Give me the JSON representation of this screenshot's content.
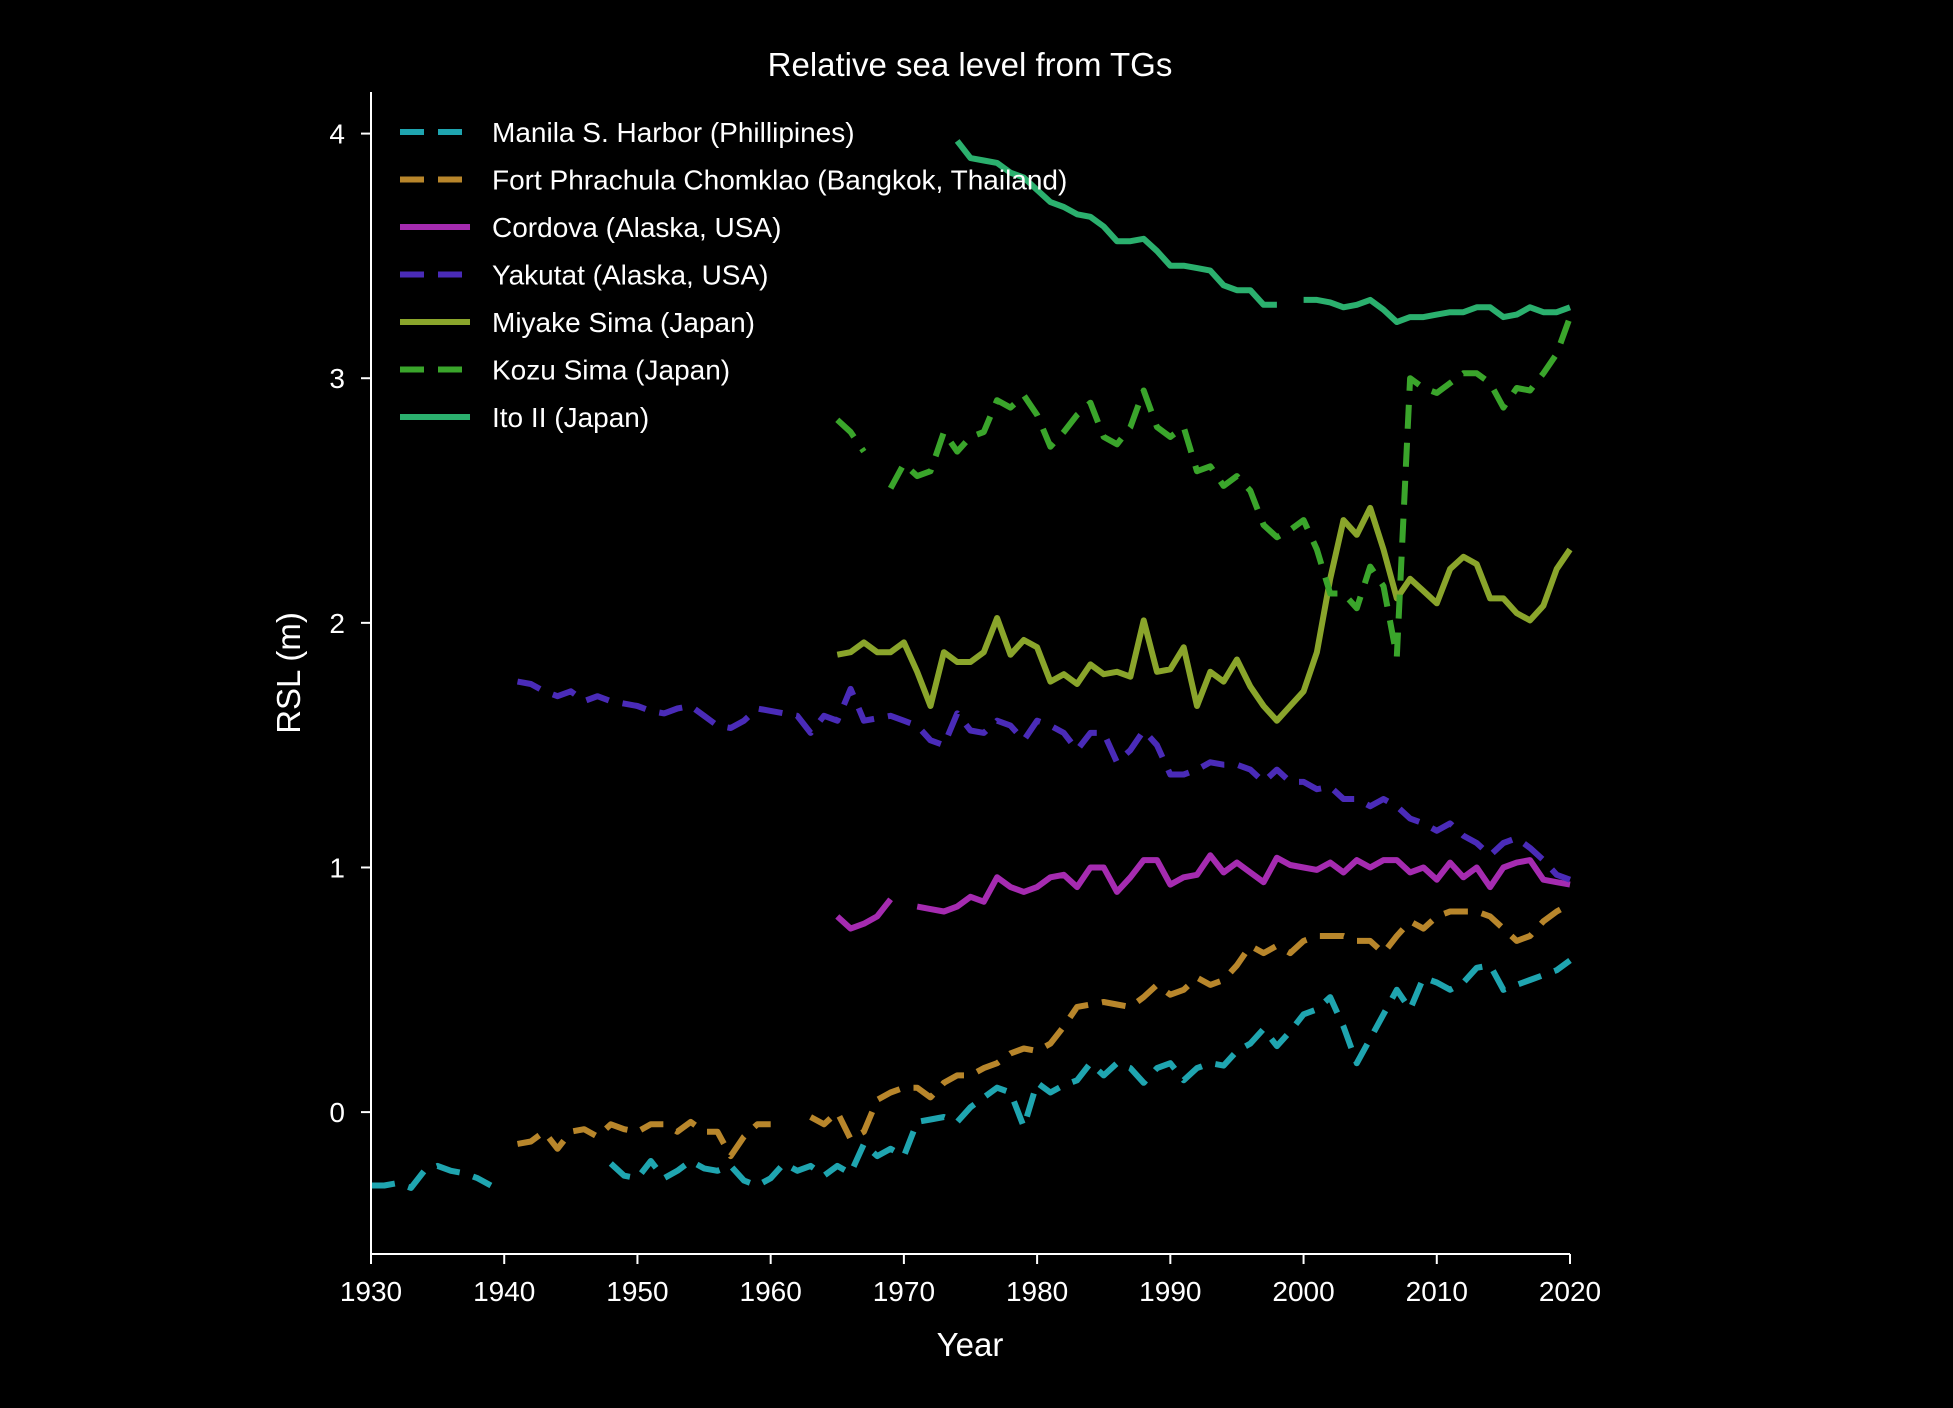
{
  "chart_data": {
    "type": "line",
    "title": "Relative sea level from TGs",
    "xlabel": "Year",
    "ylabel": "RSL (m)",
    "xlim": [
      1930,
      2020
    ],
    "ylim": [
      -0.58,
      4.17
    ],
    "xticks": [
      1930,
      1940,
      1950,
      1960,
      1970,
      1980,
      1990,
      2000,
      2010,
      2020
    ],
    "yticks": [
      0,
      1,
      2,
      3,
      4
    ],
    "grid": false,
    "legend_position": "top-left",
    "series": [
      {
        "name": "Manila S. Harbor (Phillipines)",
        "color": "#1fa5b0",
        "dash": "dashed",
        "x": [
          1930,
          1931,
          1932,
          1933,
          1934,
          1935,
          1936,
          1937,
          1938,
          1939,
          null,
          1948,
          1949,
          1950,
          1951,
          1952,
          1953,
          1954,
          1955,
          1956,
          1957,
          1958,
          1959,
          1960,
          1961,
          1962,
          1963,
          1964,
          1965,
          1966,
          1967,
          1968,
          1969,
          1970,
          1971,
          1972,
          1973,
          1974,
          1975,
          1976,
          1977,
          1978,
          1979,
          1980,
          1981,
          1982,
          1983,
          1984,
          1985,
          1986,
          1987,
          1988,
          1989,
          1990,
          1991,
          1992,
          1993,
          1994,
          1995,
          1996,
          1997,
          1998,
          1999,
          2000,
          2001,
          2002,
          2003,
          2004,
          2005,
          2006,
          2007,
          2008,
          2009,
          2010,
          2011,
          2012,
          2013,
          2014,
          2015,
          2016,
          2017,
          2018,
          2019,
          2020
        ],
        "y": [
          -0.3,
          -0.3,
          -0.29,
          -0.31,
          -0.24,
          -0.22,
          -0.24,
          -0.25,
          -0.27,
          -0.3,
          null,
          -0.21,
          -0.26,
          -0.27,
          -0.2,
          -0.27,
          -0.24,
          -0.2,
          -0.23,
          -0.24,
          -0.22,
          -0.28,
          -0.3,
          -0.27,
          -0.21,
          -0.24,
          -0.22,
          -0.26,
          -0.22,
          -0.25,
          -0.13,
          -0.18,
          -0.15,
          -0.18,
          -0.04,
          -0.03,
          -0.02,
          -0.04,
          0.02,
          0.06,
          0.1,
          0.08,
          -0.06,
          0.12,
          0.08,
          0.11,
          0.13,
          0.2,
          0.15,
          0.2,
          0.18,
          0.12,
          0.18,
          0.2,
          0.13,
          0.18,
          0.2,
          0.19,
          0.25,
          0.28,
          0.34,
          0.27,
          0.33,
          0.4,
          0.42,
          0.47,
          0.35,
          0.2,
          0.3,
          0.4,
          0.5,
          0.42,
          0.55,
          0.53,
          0.5,
          0.53,
          0.59,
          0.6,
          0.5,
          0.52,
          0.54,
          0.56,
          0.58,
          0.62
        ]
      },
      {
        "name": "Fort Phrachula Chomklao (Bangkok, Thailand)",
        "color": "#b8862b",
        "dash": "dashed",
        "x": [
          1941,
          1942,
          1943,
          1944,
          1945,
          1946,
          1947,
          1948,
          1949,
          1950,
          1951,
          1952,
          1953,
          1954,
          1955,
          1956,
          1957,
          1958,
          1959,
          1960,
          null,
          1963,
          1964,
          1965,
          1966,
          1967,
          1968,
          1969,
          1970,
          1971,
          1972,
          1973,
          1974,
          1975,
          1976,
          1977,
          1978,
          1979,
          1980,
          1981,
          1982,
          1983,
          1984,
          1985,
          1986,
          1987,
          1988,
          1989,
          1990,
          1991,
          1992,
          1993,
          1994,
          1995,
          1996,
          1997,
          1998,
          1999,
          2000,
          2001,
          2002,
          2003,
          2004,
          2005,
          2006,
          2007,
          2008,
          2009,
          2010,
          2011,
          2012,
          2013,
          2014,
          2015,
          2016,
          2017,
          2018,
          2019,
          2020
        ],
        "y": [
          -0.13,
          -0.12,
          -0.08,
          -0.15,
          -0.08,
          -0.07,
          -0.1,
          -0.05,
          -0.07,
          -0.08,
          -0.05,
          -0.05,
          -0.08,
          -0.04,
          -0.08,
          -0.08,
          -0.18,
          -0.1,
          -0.05,
          -0.05,
          null,
          -0.02,
          -0.05,
          0.0,
          -0.11,
          -0.08,
          0.05,
          0.08,
          0.1,
          0.1,
          0.06,
          0.12,
          0.15,
          0.15,
          0.18,
          0.2,
          0.24,
          0.26,
          0.25,
          0.28,
          0.35,
          0.43,
          0.44,
          0.45,
          0.44,
          0.43,
          0.47,
          0.52,
          0.48,
          0.5,
          0.55,
          0.52,
          0.54,
          0.6,
          0.68,
          0.65,
          0.68,
          0.65,
          0.7,
          0.72,
          0.72,
          0.72,
          0.7,
          0.7,
          0.65,
          0.72,
          0.78,
          0.75,
          0.8,
          0.82,
          0.82,
          0.82,
          0.8,
          0.75,
          0.7,
          0.72,
          0.78,
          0.82,
          0.85
        ]
      },
      {
        "name": "Cordova (Alaska, USA)",
        "color": "#a52bb0",
        "dash": "solid",
        "x": [
          1965,
          1966,
          1967,
          1968,
          1969,
          null,
          1971,
          1972,
          1973,
          1974,
          1975,
          1976,
          1977,
          1978,
          1979,
          1980,
          1981,
          1982,
          1983,
          1984,
          1985,
          1986,
          1987,
          1988,
          1989,
          1990,
          1991,
          1992,
          1993,
          1994,
          1995,
          1996,
          1997,
          1998,
          1999,
          2000,
          2001,
          2002,
          2003,
          2004,
          2005,
          2006,
          2007,
          2008,
          2009,
          2010,
          2011,
          2012,
          2013,
          2014,
          2015,
          2016,
          2017,
          2018,
          2019,
          2020
        ],
        "y": [
          0.8,
          0.75,
          0.77,
          0.8,
          0.87,
          null,
          0.84,
          0.83,
          0.82,
          0.84,
          0.88,
          0.86,
          0.96,
          0.92,
          0.9,
          0.92,
          0.96,
          0.97,
          0.92,
          1.0,
          1.0,
          0.9,
          0.96,
          1.03,
          1.03,
          0.93,
          0.96,
          0.97,
          1.05,
          0.98,
          1.02,
          0.98,
          0.94,
          1.04,
          1.01,
          1.0,
          0.99,
          1.02,
          0.98,
          1.03,
          1.0,
          1.03,
          1.03,
          0.98,
          1.0,
          0.95,
          1.02,
          0.96,
          1.0,
          0.92,
          1.0,
          1.02,
          1.03,
          0.95,
          0.94,
          0.93
        ]
      },
      {
        "name": "Yakutat (Alaska, USA)",
        "color": "#4a2bb8",
        "dash": "dashed",
        "x": [
          1941,
          1942,
          1943,
          1944,
          1945,
          1946,
          1947,
          1948,
          1949,
          1950,
          1951,
          1952,
          1953,
          1954,
          1955,
          1956,
          1957,
          1958,
          1959,
          1960,
          1961,
          1962,
          1963,
          1964,
          1965,
          1966,
          1967,
          1968,
          1969,
          1970,
          1971,
          1972,
          1973,
          1974,
          1975,
          1976,
          1977,
          1978,
          1979,
          1980,
          1981,
          1982,
          1983,
          1984,
          1985,
          1986,
          1987,
          1988,
          1989,
          1990,
          1991,
          1992,
          1993,
          1994,
          1995,
          1996,
          1997,
          1998,
          1999,
          2000,
          2001,
          2002,
          2003,
          2004,
          2005,
          2006,
          2007,
          2008,
          2009,
          2010,
          2011,
          2012,
          2013,
          2014,
          2015,
          2016,
          2017,
          2018,
          2019,
          2020
        ],
        "y": [
          1.76,
          1.75,
          1.72,
          1.7,
          1.72,
          1.68,
          1.7,
          1.68,
          1.67,
          1.66,
          1.64,
          1.63,
          1.65,
          1.66,
          1.62,
          1.58,
          1.57,
          1.6,
          1.65,
          1.64,
          1.63,
          1.62,
          1.55,
          1.62,
          1.6,
          1.73,
          1.6,
          1.61,
          1.62,
          1.6,
          1.58,
          1.52,
          1.5,
          1.63,
          1.56,
          1.55,
          1.6,
          1.58,
          1.52,
          1.6,
          1.58,
          1.55,
          1.48,
          1.55,
          1.55,
          1.43,
          1.48,
          1.56,
          1.5,
          1.38,
          1.38,
          1.4,
          1.43,
          1.42,
          1.42,
          1.4,
          1.35,
          1.4,
          1.35,
          1.35,
          1.32,
          1.33,
          1.28,
          1.28,
          1.25,
          1.28,
          1.25,
          1.2,
          1.18,
          1.15,
          1.18,
          1.13,
          1.1,
          1.05,
          1.1,
          1.12,
          1.08,
          1.03,
          0.97,
          0.95
        ]
      },
      {
        "name": "Miyake Sima (Japan)",
        "color": "#8aa52b",
        "dash": "solid",
        "x": [
          1965,
          1966,
          1967,
          1968,
          1969,
          1970,
          1971,
          1972,
          1973,
          1974,
          1975,
          1976,
          1977,
          1978,
          1979,
          1980,
          1981,
          1982,
          1983,
          1984,
          1985,
          1986,
          1987,
          1988,
          1989,
          1990,
          1991,
          1992,
          1993,
          1994,
          1995,
          1996,
          1997,
          1998,
          1999,
          2000,
          2001,
          2002,
          2003,
          2004,
          2005,
          2006,
          2007,
          2008,
          2009,
          2010,
          2011,
          2012,
          2013,
          2014,
          2015,
          2016,
          2017,
          2018,
          2019,
          2020
        ],
        "y": [
          1.87,
          1.88,
          1.92,
          1.88,
          1.88,
          1.92,
          1.8,
          1.66,
          1.88,
          1.84,
          1.84,
          1.88,
          2.02,
          1.87,
          1.93,
          1.9,
          1.76,
          1.79,
          1.75,
          1.83,
          1.79,
          1.8,
          1.78,
          2.01,
          1.8,
          1.81,
          1.9,
          1.66,
          1.8,
          1.76,
          1.85,
          1.74,
          1.66,
          1.6,
          1.66,
          1.72,
          1.88,
          2.18,
          2.42,
          2.36,
          2.47,
          2.3,
          2.1,
          2.18,
          2.13,
          2.08,
          2.22,
          2.27,
          2.24,
          2.1,
          2.1,
          2.04,
          2.01,
          2.07,
          2.22,
          2.3
        ]
      },
      {
        "name": "Kozu Sima (Japan)",
        "color": "#3aa52b",
        "dash": "dashed",
        "x": [
          1965,
          1966,
          1967,
          null,
          1969,
          1970,
          1971,
          1972,
          1973,
          1974,
          1975,
          1976,
          1977,
          1978,
          1979,
          1980,
          1981,
          1982,
          1983,
          1984,
          1985,
          1986,
          1987,
          1988,
          1989,
          1990,
          1991,
          1992,
          1993,
          1994,
          1995,
          1996,
          1997,
          1998,
          1999,
          2000,
          2001,
          2002,
          2003,
          2004,
          2005,
          2006,
          2007,
          2008,
          2009,
          2010,
          2011,
          2012,
          2013,
          2014,
          2015,
          2016,
          2017,
          2018,
          2019,
          2020
        ],
        "y": [
          2.83,
          2.78,
          2.7,
          null,
          2.55,
          2.65,
          2.6,
          2.62,
          2.78,
          2.7,
          2.76,
          2.78,
          2.91,
          2.88,
          2.93,
          2.85,
          2.72,
          2.78,
          2.85,
          2.9,
          2.76,
          2.73,
          2.8,
          2.95,
          2.8,
          2.76,
          2.8,
          2.62,
          2.64,
          2.56,
          2.6,
          2.54,
          2.4,
          2.35,
          2.38,
          2.42,
          2.3,
          2.12,
          2.12,
          2.06,
          2.23,
          2.15,
          1.86,
          3.0,
          2.96,
          2.94,
          2.98,
          3.02,
          3.02,
          2.98,
          2.88,
          2.96,
          2.95,
          3.02,
          3.1,
          3.25
        ]
      },
      {
        "name": "Ito II (Japan)",
        "color": "#2bb06e",
        "dash": "solid",
        "x": [
          1974,
          1975,
          1976,
          1977,
          1978,
          1979,
          1980,
          1981,
          1982,
          1983,
          1984,
          1985,
          1986,
          1987,
          1988,
          1989,
          1990,
          1991,
          1992,
          1993,
          1994,
          1995,
          1996,
          1997,
          1998,
          null,
          2000,
          2001,
          2002,
          2003,
          2004,
          2005,
          2006,
          2007,
          2008,
          2009,
          2010,
          2011,
          2012,
          2013,
          2014,
          2015,
          2016,
          2017,
          2018,
          2019,
          2020
        ],
        "y": [
          3.97,
          3.9,
          3.89,
          3.88,
          3.84,
          3.82,
          3.77,
          3.72,
          3.7,
          3.67,
          3.66,
          3.62,
          3.56,
          3.56,
          3.57,
          3.52,
          3.46,
          3.46,
          3.45,
          3.44,
          3.38,
          3.36,
          3.36,
          3.3,
          3.3,
          null,
          3.32,
          3.32,
          3.31,
          3.29,
          3.3,
          3.32,
          3.28,
          3.23,
          3.25,
          3.25,
          3.26,
          3.27,
          3.27,
          3.29,
          3.29,
          3.25,
          3.26,
          3.29,
          3.27,
          3.27,
          3.29
        ]
      }
    ]
  }
}
